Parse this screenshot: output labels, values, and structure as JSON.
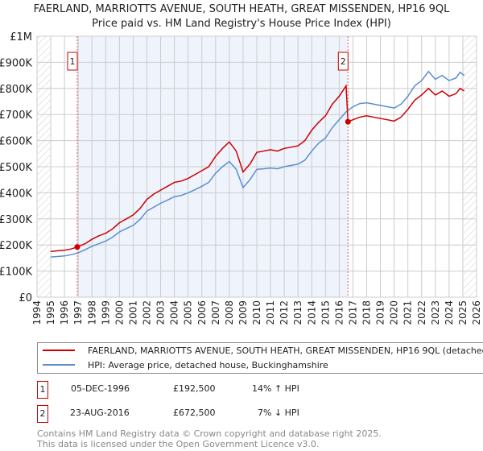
{
  "title_line1": "FAERLAND, MARRIOTTS AVENUE, SOUTH HEATH, GREAT MISSENDEN, HP16 9QL",
  "title_line2": "Price paid vs. HM Land Registry's House Price Index (HPI)",
  "chart_data": {
    "type": "line",
    "xlim": [
      1994,
      2026
    ],
    "ylim": [
      0,
      1000000
    ],
    "ytick_labels": [
      "£0",
      "£100K",
      "£200K",
      "£300K",
      "£400K",
      "£500K",
      "£600K",
      "£700K",
      "£800K",
      "£900K",
      "£1M"
    ],
    "xtick_labels": [
      "1994",
      "1995",
      "1996",
      "1997",
      "1998",
      "1999",
      "2000",
      "2001",
      "2002",
      "2003",
      "2004",
      "2005",
      "2006",
      "2007",
      "2008",
      "2009",
      "2010",
      "2011",
      "2012",
      "2013",
      "2014",
      "2015",
      "2016",
      "2017",
      "2018",
      "2019",
      "2020",
      "2021",
      "2022",
      "2023",
      "2024",
      "2025",
      "2026"
    ],
    "grid": true,
    "colors": {
      "property": "#cc0000",
      "hpi": "#5b8fd0",
      "shade": "#eef3fc"
    },
    "series": [
      {
        "name": "FAERLAND, MARRIOTTS AVENUE, SOUTH HEATH, GREAT MISSENDEN, HP16 9QL (detached house)",
        "key": "property",
        "points": [
          [
            1995,
            175000
          ],
          [
            1995.5,
            178000
          ],
          [
            1996,
            180000
          ],
          [
            1996.5,
            185000
          ],
          [
            1996.93,
            192500
          ],
          [
            1997.5,
            205000
          ],
          [
            1998,
            222000
          ],
          [
            1998.5,
            235000
          ],
          [
            1999,
            245000
          ],
          [
            1999.5,
            262000
          ],
          [
            2000,
            285000
          ],
          [
            2000.5,
            300000
          ],
          [
            2001,
            315000
          ],
          [
            2001.5,
            340000
          ],
          [
            2002,
            375000
          ],
          [
            2002.5,
            395000
          ],
          [
            2003,
            410000
          ],
          [
            2003.5,
            425000
          ],
          [
            2004,
            440000
          ],
          [
            2004.5,
            445000
          ],
          [
            2005,
            455000
          ],
          [
            2005.5,
            470000
          ],
          [
            2006,
            485000
          ],
          [
            2006.5,
            500000
          ],
          [
            2007,
            540000
          ],
          [
            2007.5,
            570000
          ],
          [
            2008,
            595000
          ],
          [
            2008.5,
            560000
          ],
          [
            2009,
            480000
          ],
          [
            2009.5,
            510000
          ],
          [
            2010,
            555000
          ],
          [
            2010.5,
            560000
          ],
          [
            2011,
            565000
          ],
          [
            2011.5,
            560000
          ],
          [
            2012,
            570000
          ],
          [
            2012.5,
            575000
          ],
          [
            2013,
            580000
          ],
          [
            2013.5,
            600000
          ],
          [
            2014,
            640000
          ],
          [
            2014.5,
            670000
          ],
          [
            2015,
            695000
          ],
          [
            2015.5,
            740000
          ],
          [
            2016,
            770000
          ],
          [
            2016.5,
            810000
          ],
          [
            2016.64,
            672500
          ],
          [
            2017,
            680000
          ],
          [
            2017.5,
            690000
          ],
          [
            2018,
            695000
          ],
          [
            2018.5,
            690000
          ],
          [
            2019,
            685000
          ],
          [
            2019.5,
            680000
          ],
          [
            2020,
            675000
          ],
          [
            2020.5,
            690000
          ],
          [
            2021,
            720000
          ],
          [
            2021.5,
            755000
          ],
          [
            2022,
            775000
          ],
          [
            2022.5,
            800000
          ],
          [
            2023,
            775000
          ],
          [
            2023.5,
            790000
          ],
          [
            2024,
            770000
          ],
          [
            2024.5,
            780000
          ],
          [
            2024.8,
            800000
          ],
          [
            2025.1,
            790000
          ]
        ]
      },
      {
        "name": "HPI: Average price, detached house, Buckinghamshire",
        "key": "hpi",
        "points": [
          [
            1995,
            154000
          ],
          [
            1995.5,
            156000
          ],
          [
            1996,
            158000
          ],
          [
            1996.5,
            163000
          ],
          [
            1997,
            170000
          ],
          [
            1997.5,
            182000
          ],
          [
            1998,
            195000
          ],
          [
            1998.5,
            205000
          ],
          [
            1999,
            215000
          ],
          [
            1999.5,
            230000
          ],
          [
            2000,
            250000
          ],
          [
            2000.5,
            263000
          ],
          [
            2001,
            275000
          ],
          [
            2001.5,
            298000
          ],
          [
            2002,
            330000
          ],
          [
            2002.5,
            345000
          ],
          [
            2003,
            360000
          ],
          [
            2003.5,
            372000
          ],
          [
            2004,
            385000
          ],
          [
            2004.5,
            390000
          ],
          [
            2005,
            400000
          ],
          [
            2005.5,
            412000
          ],
          [
            2006,
            425000
          ],
          [
            2006.5,
            440000
          ],
          [
            2007,
            475000
          ],
          [
            2007.5,
            500000
          ],
          [
            2008,
            520000
          ],
          [
            2008.5,
            490000
          ],
          [
            2009,
            420000
          ],
          [
            2009.5,
            450000
          ],
          [
            2010,
            490000
          ],
          [
            2010.5,
            492000
          ],
          [
            2011,
            495000
          ],
          [
            2011.5,
            492000
          ],
          [
            2012,
            500000
          ],
          [
            2012.5,
            505000
          ],
          [
            2013,
            510000
          ],
          [
            2013.5,
            525000
          ],
          [
            2014,
            560000
          ],
          [
            2014.5,
            590000
          ],
          [
            2015,
            610000
          ],
          [
            2015.5,
            650000
          ],
          [
            2016,
            680000
          ],
          [
            2016.5,
            710000
          ],
          [
            2017,
            730000
          ],
          [
            2017.5,
            742000
          ],
          [
            2018,
            745000
          ],
          [
            2018.5,
            740000
          ],
          [
            2019,
            735000
          ],
          [
            2019.5,
            730000
          ],
          [
            2020,
            725000
          ],
          [
            2020.5,
            740000
          ],
          [
            2021,
            770000
          ],
          [
            2021.5,
            810000
          ],
          [
            2022,
            830000
          ],
          [
            2022.5,
            865000
          ],
          [
            2023,
            835000
          ],
          [
            2023.5,
            850000
          ],
          [
            2024,
            830000
          ],
          [
            2024.5,
            840000
          ],
          [
            2024.8,
            862000
          ],
          [
            2025.1,
            850000
          ]
        ]
      }
    ],
    "annotations": [
      {
        "label": "1",
        "x": 1996.93
      },
      {
        "label": "2",
        "x": 2016.64
      }
    ]
  },
  "legend": {
    "property": "FAERLAND, MARRIOTTS AVENUE, SOUTH HEATH, GREAT MISSENDEN, HP16 9QL (detached house)",
    "hpi": "HPI: Average price, detached house, Buckinghamshire"
  },
  "sales": [
    {
      "num": "1",
      "date": "05-DEC-1996",
      "price": "£192,500",
      "hpi": "14% ↑ HPI"
    },
    {
      "num": "2",
      "date": "23-AUG-2016",
      "price": "£672,500",
      "hpi": "7% ↓ HPI"
    }
  ],
  "footer": {
    "line1": "Contains HM Land Registry data © Crown copyright and database right 2025.",
    "line2": "This data is licensed under the Open Government Licence v3.0."
  }
}
